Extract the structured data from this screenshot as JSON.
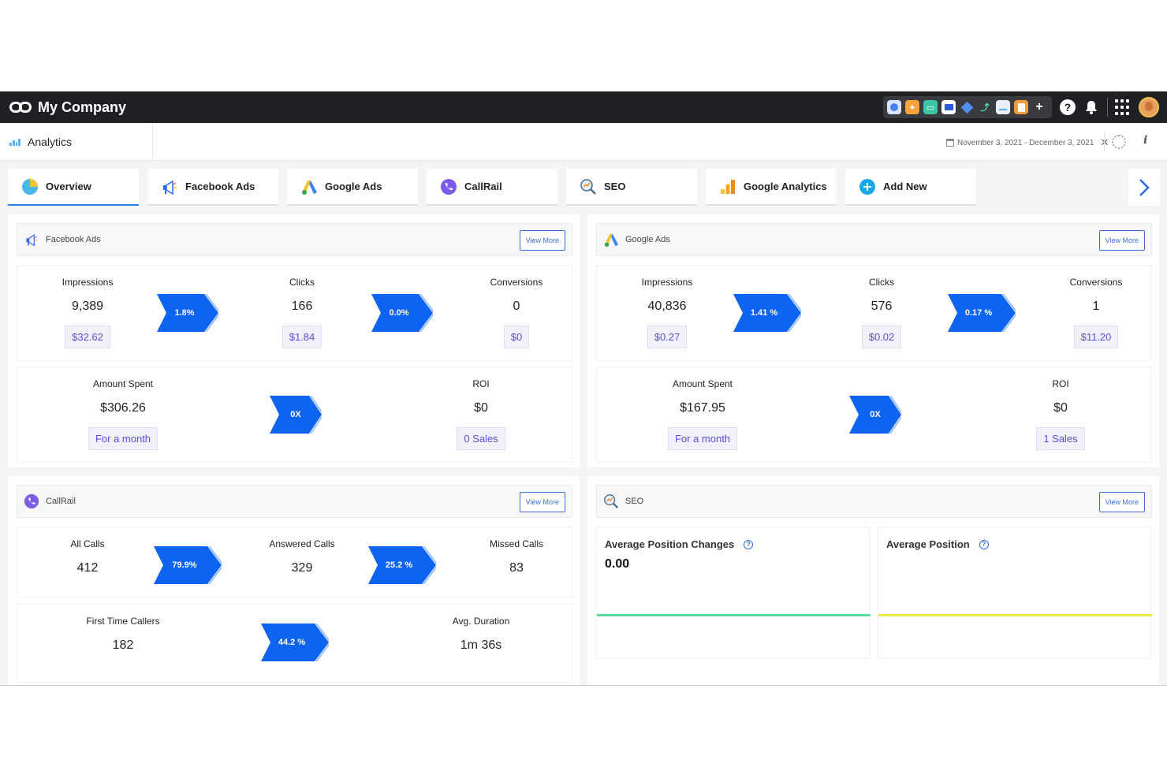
{
  "topbar": {
    "company": "My Company"
  },
  "header": {
    "title": "Analytics",
    "date_range": "November 3, 2021 - December 3, 2021"
  },
  "tabs": [
    {
      "label": "Overview",
      "icon": "pie-chart-icon",
      "active": true
    },
    {
      "label": "Facebook Ads",
      "icon": "megaphone-icon"
    },
    {
      "label": "Google Ads",
      "icon": "google-ads-icon"
    },
    {
      "label": "CallRail",
      "icon": "phone-icon"
    },
    {
      "label": "SEO",
      "icon": "magnifier-chart-icon"
    },
    {
      "label": "Google Analytics",
      "icon": "google-analytics-icon"
    },
    {
      "label": "Add New",
      "icon": "plus-icon"
    }
  ],
  "common": {
    "view_more": "View More"
  },
  "facebook": {
    "title": "Facebook Ads",
    "impressions": {
      "label": "Impressions",
      "value": "9,389",
      "tag": "$32.62"
    },
    "rate1": "1.8%",
    "clicks": {
      "label": "Clicks",
      "value": "166",
      "tag": "$1.84"
    },
    "rate2": "0.0%",
    "conversions": {
      "label": "Conversions",
      "value": "0",
      "tag": "$0"
    },
    "spent": {
      "label": "Amount Spent",
      "value": "$306.26",
      "tag": "For a month"
    },
    "roi_rate": "0X",
    "roi": {
      "label": "ROI",
      "value": "$0",
      "tag": "0 Sales"
    }
  },
  "google": {
    "title": "Google Ads",
    "impressions": {
      "label": "Impressions",
      "value": "40,836",
      "tag": "$0.27"
    },
    "rate1": "1.41 %",
    "clicks": {
      "label": "Clicks",
      "value": "576",
      "tag": "$0.02"
    },
    "rate2": "0.17 %",
    "conversions": {
      "label": "Conversions",
      "value": "1",
      "tag": "$11.20"
    },
    "spent": {
      "label": "Amount Spent",
      "value": "$167.95",
      "tag": "For a month"
    },
    "roi_rate": "0X",
    "roi": {
      "label": "ROI",
      "value": "$0",
      "tag": "1 Sales"
    }
  },
  "callrail": {
    "title": "CallRail",
    "all_calls": {
      "label": "All Calls",
      "value": "412"
    },
    "rate1": "79.9%",
    "answered": {
      "label": "Answered Calls",
      "value": "329"
    },
    "rate2": "25.2 %",
    "missed": {
      "label": "Missed Calls",
      "value": "83"
    },
    "first_time": {
      "label": "First Time Callers",
      "value": "182"
    },
    "rate3": "44.2 %",
    "duration": {
      "label": "Avg. Duration",
      "value": "1m 36s"
    }
  },
  "seo": {
    "title": "SEO",
    "avg_change": {
      "label": "Average Position Changes",
      "value": "0.00",
      "line_color": "#5fd99a"
    },
    "avg_position": {
      "label": "Average Position",
      "line_color": "#eeea4a"
    }
  },
  "colors": {
    "chevron": "#0d63f2",
    "accent": "#2f7de1"
  }
}
